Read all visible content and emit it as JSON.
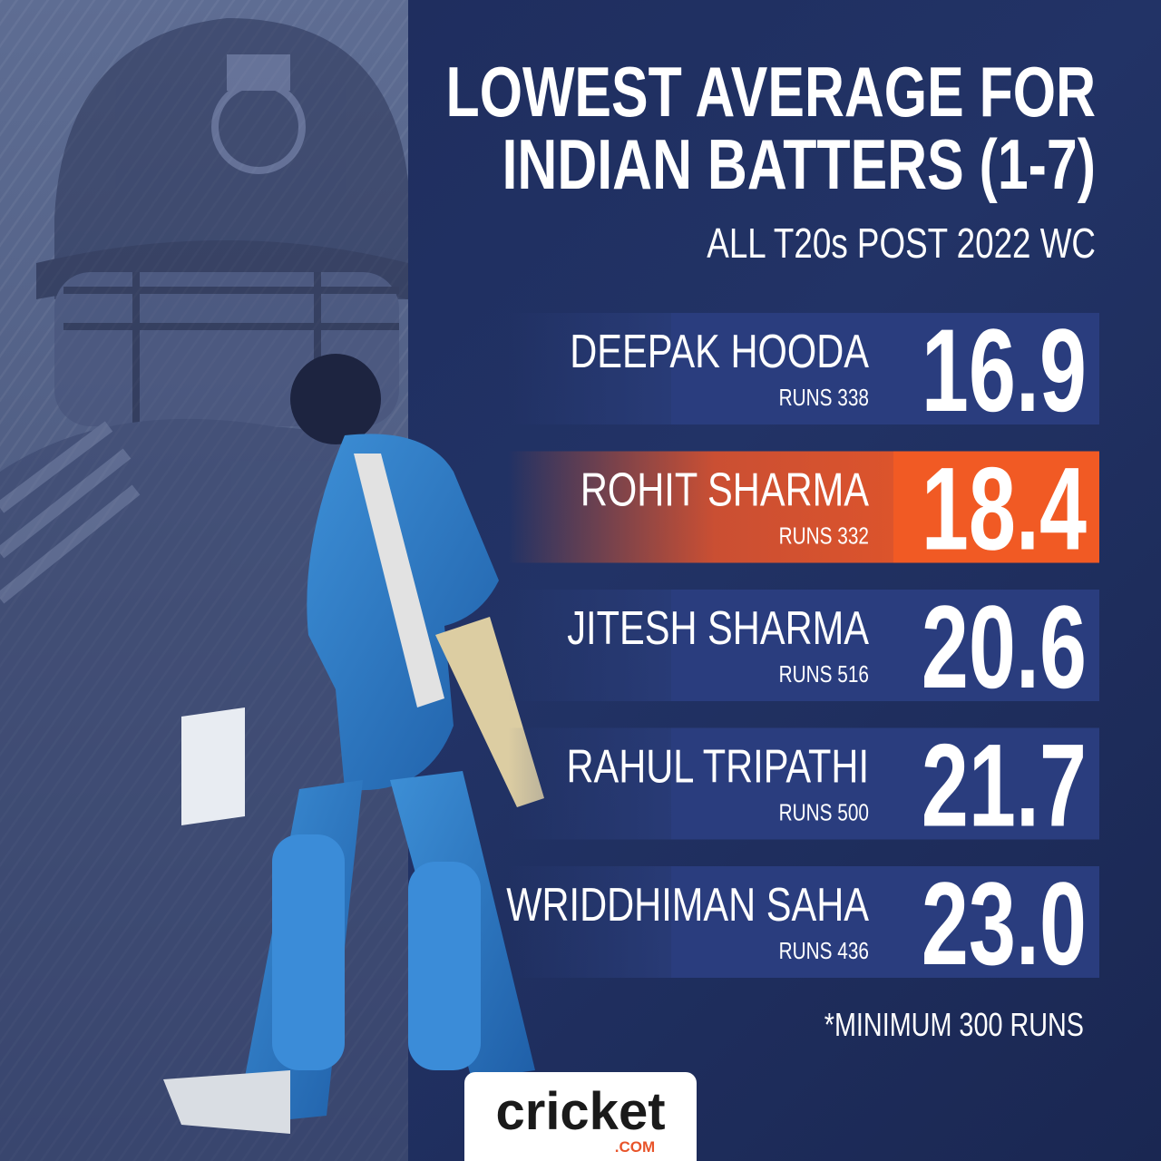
{
  "header": {
    "title_lines": [
      "LOWEST AVERAGE FOR",
      "INDIAN BATTERS (1-7)"
    ],
    "subtitle": "ALL T20s POST 2022 WC"
  },
  "rows": [
    {
      "name": "DEEPAK HOODA",
      "runs": "RUNS 338",
      "average": "16.9",
      "highlight": false
    },
    {
      "name": "ROHIT SHARMA",
      "runs": "RUNS 332",
      "average": "18.4",
      "highlight": true
    },
    {
      "name": "JITESH SHARMA",
      "runs": "RUNS 516",
      "average": "20.6",
      "highlight": false
    },
    {
      "name": "RAHUL TRIPATHI",
      "runs": "RUNS 500",
      "average": "21.7",
      "highlight": false
    },
    {
      "name": "WRIDDHIMAN SAHA",
      "runs": "RUNS 436",
      "average": "23.0",
      "highlight": false
    }
  ],
  "footnote": "*MINIMUM 300 RUNS",
  "logo": {
    "text": "cricket",
    "suffix": ".COM"
  }
}
